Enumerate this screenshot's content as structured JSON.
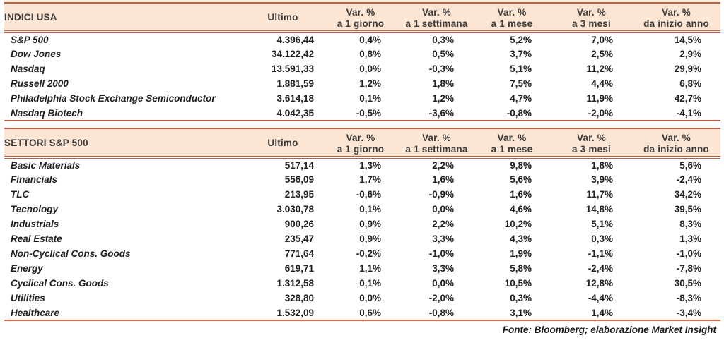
{
  "source_note": "Fonte: Bloomberg; elaborazione Market Insight",
  "colors": {
    "band_fill": "#fce5d3",
    "band_sliver": "#fdeedd",
    "band_border": "#bf5f47",
    "closing_line": "#e5643d",
    "text": "#212121"
  },
  "tables": [
    {
      "title": "INDICI USA",
      "ultimo_label": "Ultimo",
      "var_label": "Var. %",
      "periods": [
        "a 1 giorno",
        "a 1 settimana",
        "a 1 mese",
        "a 3 mesi",
        "da inizio anno"
      ],
      "rows": [
        {
          "name": "S&P 500",
          "ultimo": "4.396,44",
          "vars": [
            "0,4%",
            "0,3%",
            "5,2%",
            "7,0%",
            "14,5%"
          ]
        },
        {
          "name": "Dow Jones",
          "ultimo": "34.122,42",
          "vars": [
            "0,8%",
            "0,5%",
            "3,7%",
            "2,5%",
            "2,9%"
          ]
        },
        {
          "name": "Nasdaq",
          "ultimo": "13.591,33",
          "vars": [
            "0,0%",
            "-0,3%",
            "5,1%",
            "11,2%",
            "29,9%"
          ]
        },
        {
          "name": "Russell 2000",
          "ultimo": "1.881,59",
          "vars": [
            "1,2%",
            "1,8%",
            "7,5%",
            "4,4%",
            "6,8%"
          ]
        },
        {
          "name": "Philadelphia Stock Exchange Semiconductor",
          "ultimo": "3.614,18",
          "vars": [
            "0,1%",
            "1,2%",
            "4,7%",
            "11,9%",
            "42,7%"
          ]
        },
        {
          "name": "Nasdaq Biotech",
          "ultimo": "4.042,35",
          "vars": [
            "-0,5%",
            "-3,6%",
            "-0,8%",
            "-2,0%",
            "-4,1%"
          ]
        }
      ]
    },
    {
      "title": "SETTORI S&P 500",
      "ultimo_label": "Ultimo",
      "var_label": "Var. %",
      "periods": [
        "a 1 giorno",
        "a 1 settimana",
        "a 1 mese",
        "a 3 mesi",
        "da inizio anno"
      ],
      "rows": [
        {
          "name": "Basic Materials",
          "ultimo": "517,14",
          "vars": [
            "1,3%",
            "2,2%",
            "9,8%",
            "1,8%",
            "5,6%"
          ]
        },
        {
          "name": "Financials",
          "ultimo": "556,09",
          "vars": [
            "1,7%",
            "1,6%",
            "5,6%",
            "3,9%",
            "-2,4%"
          ]
        },
        {
          "name": "TLC",
          "ultimo": "213,95",
          "vars": [
            "-0,6%",
            "-0,9%",
            "1,6%",
            "11,7%",
            "34,2%"
          ]
        },
        {
          "name": "Tecnology",
          "ultimo": "3.030,78",
          "vars": [
            "0,1%",
            "0,0%",
            "4,6%",
            "14,8%",
            "39,5%"
          ]
        },
        {
          "name": "Industrials",
          "ultimo": "900,26",
          "vars": [
            "0,9%",
            "2,2%",
            "10,2%",
            "5,1%",
            "8,3%"
          ]
        },
        {
          "name": "Real Estate",
          "ultimo": "235,47",
          "vars": [
            "0,9%",
            "3,3%",
            "4,3%",
            "0,3%",
            "1,3%"
          ]
        },
        {
          "name": "Non-Cyclical Cons. Goods",
          "ultimo": "771,64",
          "vars": [
            "-0,2%",
            "-1,0%",
            "1,9%",
            "-1,1%",
            "-1,0%"
          ]
        },
        {
          "name": "Energy",
          "ultimo": "619,71",
          "vars": [
            "1,1%",
            "3,3%",
            "5,8%",
            "-2,4%",
            "-7,8%"
          ]
        },
        {
          "name": "Cyclical Cons. Goods",
          "ultimo": "1.312,58",
          "vars": [
            "0,1%",
            "0,0%",
            "10,5%",
            "12,8%",
            "30,5%"
          ]
        },
        {
          "name": "Utilities",
          "ultimo": "328,80",
          "vars": [
            "0,0%",
            "-2,0%",
            "0,3%",
            "-4,4%",
            "-8,3%"
          ]
        },
        {
          "name": "Healthcare",
          "ultimo": "1.532,09",
          "vars": [
            "0,6%",
            "-0,8%",
            "3,1%",
            "1,4%",
            "-3,4%"
          ]
        }
      ]
    }
  ]
}
